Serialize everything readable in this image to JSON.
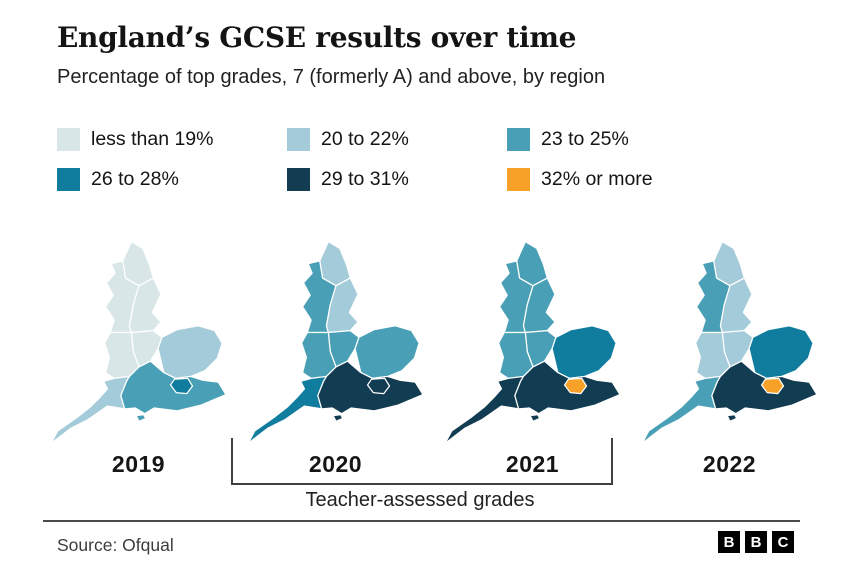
{
  "header": {
    "title": "England’s GCSE results over time",
    "subtitle": "Percentage of top grades, 7 (formerly A) and above, by region"
  },
  "bracket": {
    "label": "Teacher-assessed grades"
  },
  "footer": {
    "source": "Source: Ofqual",
    "logo_letters": [
      "B",
      "B",
      "C"
    ]
  },
  "chart_data": {
    "type": "heatmap",
    "subtype": "choropleth_map_small_multiples",
    "title": "England’s GCSE results over time",
    "subtitle": "Percentage of top grades, 7 (formerly A) and above, by region",
    "unit": "percentage achieving grade 7 (formerly A) and above",
    "legend_bins": [
      {
        "label": "less than 19%",
        "color": "#d8e6e8"
      },
      {
        "label": "20 to 22%",
        "color": "#a4cbd9"
      },
      {
        "label": "23 to 25%",
        "color": "#49a0b6"
      },
      {
        "label": "26 to 28%",
        "color": "#117d9e"
      },
      {
        "label": "29 to 31%",
        "color": "#113c51"
      },
      {
        "label": "32% or more",
        "color": "#f7a128"
      }
    ],
    "maps": [
      {
        "year": "2019",
        "teacher_assessed": false,
        "regions": {
          "North East": "less than 19%",
          "North West": "less than 19%",
          "Yorkshire and the Humber": "less than 19%",
          "East Midlands": "less than 19%",
          "West Midlands": "less than 19%",
          "East of England": "20 to 22%",
          "London": "26 to 28%",
          "South East": "23 to 25%",
          "South West": "20 to 22%"
        }
      },
      {
        "year": "2020",
        "teacher_assessed": true,
        "regions": {
          "North East": "20 to 22%",
          "North West": "23 to 25%",
          "Yorkshire and the Humber": "20 to 22%",
          "East Midlands": "23 to 25%",
          "West Midlands": "23 to 25%",
          "East of England": "23 to 25%",
          "London": "29 to 31%",
          "South East": "29 to 31%",
          "South West": "26 to 28%"
        }
      },
      {
        "year": "2021",
        "teacher_assessed": true,
        "regions": {
          "North East": "23 to 25%",
          "North West": "23 to 25%",
          "Yorkshire and the Humber": "23 to 25%",
          "East Midlands": "23 to 25%",
          "West Midlands": "23 to 25%",
          "East of England": "26 to 28%",
          "London": "32% or more",
          "South East": "29 to 31%",
          "South West": "29 to 31%"
        }
      },
      {
        "year": "2022",
        "teacher_assessed": false,
        "regions": {
          "North East": "20 to 22%",
          "North West": "23 to 25%",
          "Yorkshire and the Humber": "20 to 22%",
          "East Midlands": "20 to 22%",
          "West Midlands": "20 to 22%",
          "East of England": "26 to 28%",
          "London": "32% or more",
          "South East": "29 to 31%",
          "South West": "23 to 25%"
        }
      }
    ],
    "annotation": {
      "label": "Teacher-assessed grades",
      "applies_to_years": [
        "2020",
        "2021"
      ]
    },
    "legend_position": "top",
    "grid": false
  }
}
